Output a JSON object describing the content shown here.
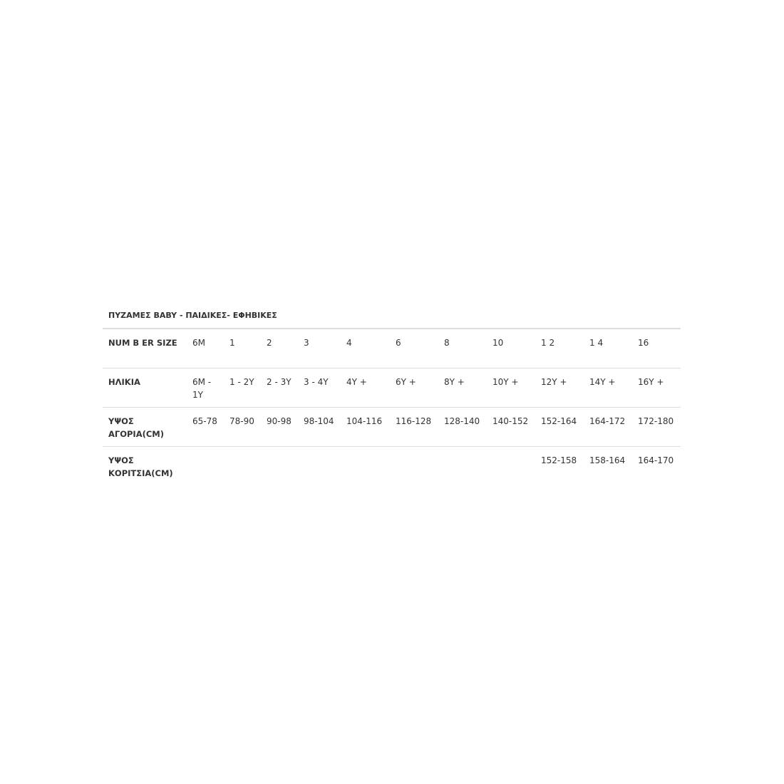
{
  "title": "ΠΥΖΑΜΕΣ BABY - ΠΑΙΔΙΚΕΣ- ΕΦΗΒΙΚΕΣ",
  "rows": [
    {
      "label": "NUM B ER SIZE",
      "cells": [
        "6M",
        "1",
        "2",
        "3",
        "4",
        "6",
        "8",
        "10",
        "1 2",
        "1 4",
        "16"
      ]
    },
    {
      "label": "ΗΛΙΚΙΑ",
      "cells": [
        "6M - 1Y",
        "1 - 2Y",
        "2 - 3Y",
        "3 - 4Y",
        "4Y +",
        "6Y +",
        "8Y +",
        "10Y +",
        "12Y +",
        "14Y +",
        "16Y +"
      ]
    },
    {
      "label": "ΥΨΟΣ ΑΓΟΡΙΑ(CM)",
      "cells": [
        "65-78",
        "78-90",
        "90-98",
        "98-104",
        "104-116",
        "116-128",
        "128-140",
        "140-152",
        "152-164",
        "164-172",
        "172-180"
      ]
    },
    {
      "label": "ΥΨΟΣ ΚΟΡΙΤΣΙΑ(CM)",
      "cells": [
        "",
        "",
        "",
        "",
        "",
        "",
        "",
        "",
        "152-158",
        "158-164",
        "164-170"
      ]
    }
  ]
}
